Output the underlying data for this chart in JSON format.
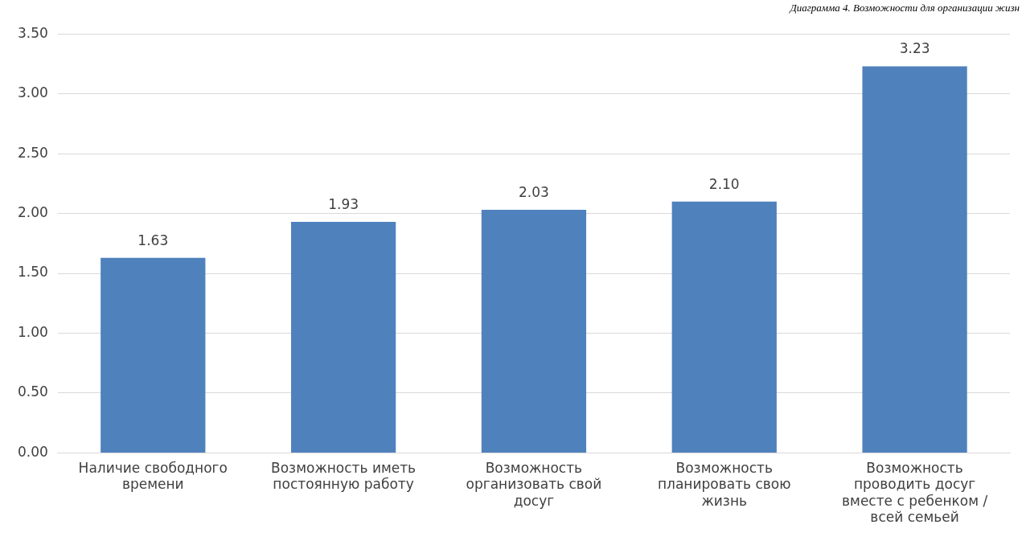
{
  "chart_data": {
    "type": "bar",
    "title": "Диаграмма 4. Возможности для организации жизн",
    "categories": [
      "Наличие свободного времени",
      "Возможность иметь постоянную работу",
      "Возможность организовать свой досуг",
      "Возможность планировать свою жизнь",
      "Возможность проводить досуг вместе с ребенком / всей семьей"
    ],
    "values": [
      1.63,
      1.93,
      2.03,
      2.1,
      3.23
    ],
    "color": "#4f81bd",
    "ylim": [
      0,
      3.5
    ],
    "yticks": [
      {
        "value": 0,
        "label": "0.00"
      },
      {
        "value": 0.5,
        "label": "0.50"
      },
      {
        "value": 1,
        "label": "1.00"
      },
      {
        "value": 1.5,
        "label": "1.50"
      },
      {
        "value": 2,
        "label": "2.00"
      },
      {
        "value": 2.5,
        "label": "2.50"
      },
      {
        "value": 3,
        "label": "3.00"
      },
      {
        "value": 3.5,
        "label": "3.50"
      }
    ],
    "value_labels": [
      "1.63",
      "1.93",
      "2.03",
      "2.10",
      "3.23"
    ],
    "grid": "y"
  }
}
